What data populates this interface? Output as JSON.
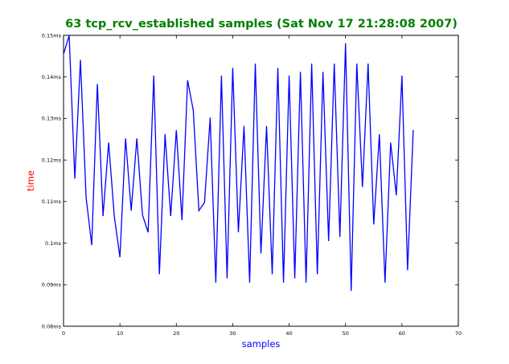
{
  "chart_data": {
    "type": "line",
    "title": "63 tcp_rcv_established samples (Sat Nov 17 21:28:08 2007)",
    "xlabel": "samples",
    "ylabel": "time",
    "xlim": [
      0,
      70
    ],
    "ylim": [
      0.08,
      0.15
    ],
    "x_ticks": [
      "0",
      "10",
      "20",
      "30",
      "40",
      "50",
      "60",
      "70"
    ],
    "y_ticks": [
      "0.08ms",
      "0.09ms",
      "0.1ms",
      "0.11ms",
      "0.12ms",
      "0.13ms",
      "0.14ms",
      "0.15ms"
    ],
    "grid": false,
    "series": [
      {
        "color": "#0000ff",
        "x": [
          0,
          1,
          2,
          3,
          4,
          5,
          6,
          7,
          8,
          9,
          10,
          11,
          12,
          13,
          14,
          15,
          16,
          17,
          18,
          19,
          20,
          21,
          22,
          23,
          24,
          25,
          26,
          27,
          28,
          29,
          30,
          31,
          32,
          33,
          34,
          35,
          36,
          37,
          38,
          39,
          40,
          41,
          42,
          43,
          44,
          45,
          46,
          47,
          48,
          49,
          50,
          51,
          52,
          53,
          54,
          55,
          56,
          57,
          58,
          59,
          60,
          61,
          62
        ],
        "values": [
          0.1455,
          0.15,
          0.1155,
          0.1441,
          0.111,
          0.0995,
          0.1383,
          0.1065,
          0.1242,
          0.1065,
          0.0966,
          0.1252,
          0.1078,
          0.1252,
          0.1068,
          0.1026,
          0.1403,
          0.0925,
          0.1262,
          0.1065,
          0.1272,
          0.1055,
          0.1392,
          0.132,
          0.1078,
          0.1098,
          0.1302,
          0.0905,
          0.1403,
          0.0915,
          0.1422,
          0.1026,
          0.1282,
          0.0905,
          0.1432,
          0.0975,
          0.1282,
          0.0925,
          0.1422,
          0.0905,
          0.1403,
          0.0915,
          0.1412,
          0.0905,
          0.1432,
          0.0925,
          0.1412,
          0.1005,
          0.1432,
          0.1015,
          0.1481,
          0.0885,
          0.1432,
          0.1135,
          0.1432,
          0.1045,
          0.1262,
          0.0905,
          0.1242,
          0.1115,
          0.1403,
          0.0935,
          0.1272
        ]
      }
    ]
  }
}
